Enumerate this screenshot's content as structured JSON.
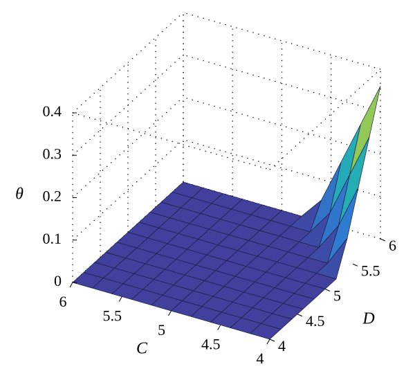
{
  "chart_data": {
    "type": "surface",
    "x_label": "C",
    "y_label": "D",
    "z_label": "θ",
    "x": [
      4,
      4.2,
      4.4,
      4.6,
      4.8,
      5,
      5.2,
      5.4,
      5.6,
      5.8,
      6
    ],
    "y": [
      4,
      4.2,
      4.4,
      4.6,
      4.8,
      5,
      5.2,
      5.4,
      5.6,
      5.8,
      6
    ],
    "z": [
      [
        0,
        0,
        0,
        0,
        0,
        0,
        0,
        0.072,
        0.168,
        0.264,
        0.36
      ],
      [
        0,
        0,
        0,
        0,
        0,
        0,
        0,
        0,
        0.065,
        0.161,
        0.257
      ],
      [
        0,
        0,
        0,
        0,
        0,
        0,
        0,
        0,
        0,
        0.058,
        0.154
      ],
      [
        0,
        0,
        0,
        0,
        0,
        0,
        0,
        0,
        0,
        0,
        0.051
      ],
      [
        0,
        0,
        0,
        0,
        0,
        0,
        0,
        0,
        0,
        0,
        0
      ],
      [
        0,
        0,
        0,
        0,
        0,
        0,
        0,
        0,
        0,
        0,
        0
      ],
      [
        0,
        0,
        0,
        0,
        0,
        0,
        0,
        0,
        0,
        0,
        0
      ],
      [
        0,
        0,
        0,
        0,
        0,
        0,
        0,
        0,
        0,
        0,
        0
      ],
      [
        0,
        0,
        0,
        0,
        0,
        0,
        0,
        0,
        0,
        0,
        0
      ],
      [
        0,
        0,
        0,
        0,
        0,
        0,
        0,
        0,
        0,
        0,
        0
      ],
      [
        0,
        0,
        0,
        0,
        0,
        0,
        0,
        0,
        0,
        0,
        0
      ]
    ],
    "xlim": [
      4,
      6
    ],
    "ylim": [
      4,
      6
    ],
    "zlim": [
      0,
      0.4
    ],
    "xticks": [
      4,
      4.5,
      5,
      5.5,
      6
    ],
    "yticks": [
      4,
      4.5,
      5,
      5.5,
      6
    ],
    "zticks": [
      0,
      0.1,
      0.2,
      0.3,
      0.4
    ],
    "grid": true,
    "colormap": [
      "#41409c",
      "#2c86d8",
      "#22b6ac",
      "#9fca4c",
      "#f6d43b"
    ]
  }
}
